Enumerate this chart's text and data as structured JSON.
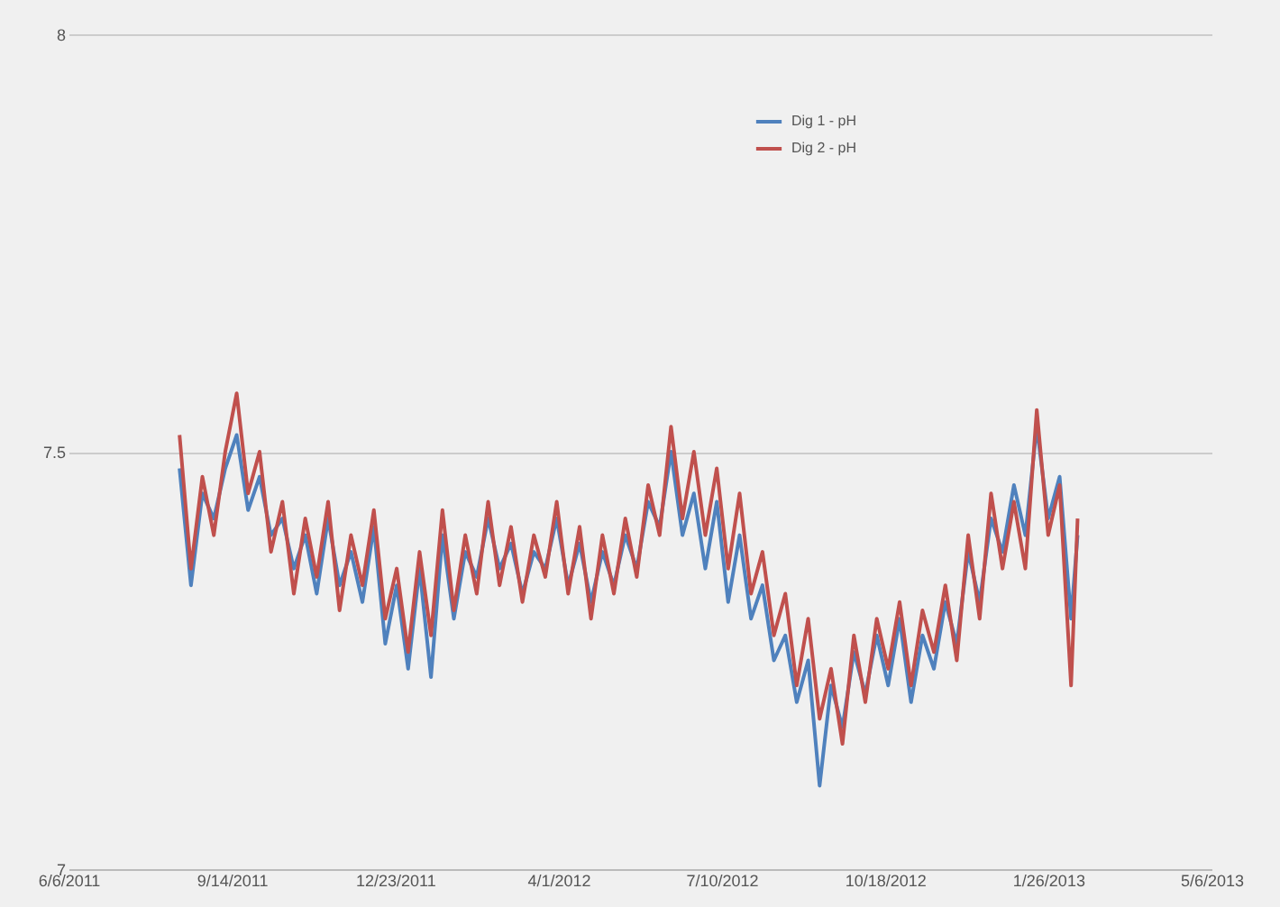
{
  "chart_data": {
    "type": "line",
    "x": [
      "2011-08-13",
      "2011-08-20",
      "2011-08-27",
      "2011-09-03",
      "2011-09-10",
      "2011-09-17",
      "2011-09-24",
      "2011-10-01",
      "2011-10-08",
      "2011-10-15",
      "2011-10-22",
      "2011-10-29",
      "2011-11-05",
      "2011-11-12",
      "2011-11-19",
      "2011-11-26",
      "2011-12-03",
      "2011-12-10",
      "2011-12-17",
      "2011-12-24",
      "2011-12-31",
      "2012-01-07",
      "2012-01-14",
      "2012-01-21",
      "2012-01-28",
      "2012-02-04",
      "2012-02-11",
      "2012-02-18",
      "2012-02-25",
      "2012-03-03",
      "2012-03-10",
      "2012-03-17",
      "2012-03-24",
      "2012-03-31",
      "2012-04-07",
      "2012-04-14",
      "2012-04-21",
      "2012-04-28",
      "2012-05-05",
      "2012-05-12",
      "2012-05-19",
      "2012-05-26",
      "2012-06-02",
      "2012-06-09",
      "2012-06-16",
      "2012-06-23",
      "2012-06-30",
      "2012-07-07",
      "2012-07-14",
      "2012-07-21",
      "2012-07-28",
      "2012-08-04",
      "2012-08-11",
      "2012-08-18",
      "2012-08-25",
      "2012-09-01",
      "2012-09-08",
      "2012-09-15",
      "2012-09-22",
      "2012-09-29",
      "2012-10-06",
      "2012-10-13",
      "2012-10-20",
      "2012-10-27",
      "2012-11-03",
      "2012-11-10",
      "2012-11-17",
      "2012-11-24",
      "2012-12-01",
      "2012-12-08",
      "2012-12-15",
      "2012-12-22",
      "2012-12-29",
      "2013-01-05",
      "2013-01-12",
      "2013-01-19",
      "2013-01-26",
      "2013-02-02",
      "2013-02-09",
      "2013-02-13"
    ],
    "series": [
      {
        "name": "Dig 1 - pH",
        "color": "#4f81bd",
        "values": [
          7.48,
          7.34,
          7.45,
          7.42,
          7.48,
          7.52,
          7.43,
          7.47,
          7.4,
          7.42,
          7.36,
          7.4,
          7.33,
          7.42,
          7.34,
          7.38,
          7.32,
          7.41,
          7.27,
          7.34,
          7.24,
          7.36,
          7.23,
          7.4,
          7.3,
          7.38,
          7.35,
          7.42,
          7.36,
          7.39,
          7.33,
          7.38,
          7.36,
          7.42,
          7.34,
          7.39,
          7.32,
          7.38,
          7.34,
          7.4,
          7.36,
          7.44,
          7.41,
          7.5,
          7.4,
          7.45,
          7.36,
          7.44,
          7.32,
          7.4,
          7.3,
          7.34,
          7.25,
          7.28,
          7.2,
          7.25,
          7.1,
          7.22,
          7.17,
          7.26,
          7.21,
          7.28,
          7.22,
          7.3,
          7.2,
          7.28,
          7.24,
          7.32,
          7.27,
          7.38,
          7.32,
          7.42,
          7.38,
          7.46,
          7.4,
          7.53,
          7.42,
          7.47,
          7.3,
          7.4
        ]
      },
      {
        "name": "Dig 2 - pH",
        "color": "#c0504d",
        "values": [
          7.52,
          7.36,
          7.47,
          7.4,
          7.5,
          7.57,
          7.45,
          7.5,
          7.38,
          7.44,
          7.33,
          7.42,
          7.35,
          7.44,
          7.31,
          7.4,
          7.34,
          7.43,
          7.3,
          7.36,
          7.26,
          7.38,
          7.28,
          7.43,
          7.31,
          7.4,
          7.33,
          7.44,
          7.34,
          7.41,
          7.32,
          7.4,
          7.35,
          7.44,
          7.33,
          7.41,
          7.3,
          7.4,
          7.33,
          7.42,
          7.35,
          7.46,
          7.4,
          7.53,
          7.42,
          7.5,
          7.4,
          7.48,
          7.36,
          7.45,
          7.33,
          7.38,
          7.28,
          7.33,
          7.22,
          7.3,
          7.18,
          7.24,
          7.15,
          7.28,
          7.2,
          7.3,
          7.24,
          7.32,
          7.22,
          7.31,
          7.26,
          7.34,
          7.25,
          7.4,
          7.3,
          7.45,
          7.36,
          7.44,
          7.36,
          7.55,
          7.4,
          7.46,
          7.22,
          7.42
        ]
      }
    ],
    "xlim": [
      "2011-06-06",
      "2013-05-06"
    ],
    "xticks": [
      {
        "value": "2011-06-06",
        "label": "6/6/2011"
      },
      {
        "value": "2011-09-14",
        "label": "9/14/2011"
      },
      {
        "value": "2011-12-23",
        "label": "12/23/2011"
      },
      {
        "value": "2012-04-01",
        "label": "4/1/2012"
      },
      {
        "value": "2012-07-10",
        "label": "7/10/2012"
      },
      {
        "value": "2012-10-18",
        "label": "10/18/2012"
      },
      {
        "value": "2013-01-26",
        "label": "1/26/2013"
      },
      {
        "value": "2013-05-06",
        "label": "5/6/2013"
      }
    ],
    "ylim": [
      7,
      8
    ],
    "yticks": [
      7,
      7.5,
      8
    ],
    "grid": "y",
    "legend": "top",
    "marker": "none",
    "line_style": "solid"
  }
}
